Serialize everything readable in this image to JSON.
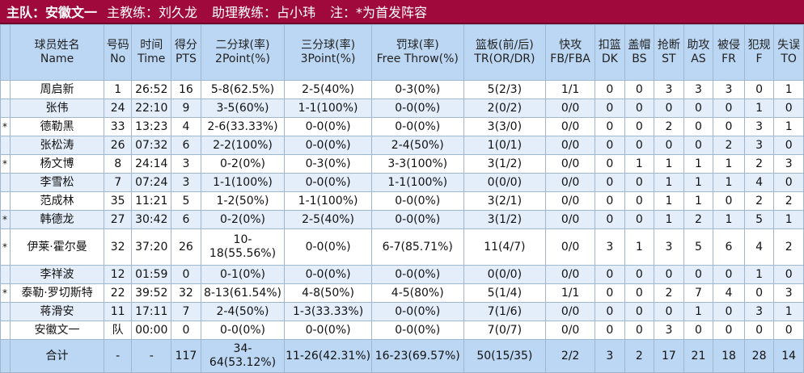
{
  "banner": {
    "team": "主队：安徽文一",
    "coach": "主教练：刘久龙",
    "assistant": "助理教练：占小玮",
    "note": "注：*为首发阵容"
  },
  "columns": [
    {
      "cn": "",
      "en": ""
    },
    {
      "cn": "球员姓名",
      "en": "Name"
    },
    {
      "cn": "号码",
      "en": "No"
    },
    {
      "cn": "时间",
      "en": "Time"
    },
    {
      "cn": "得分",
      "en": "PTS"
    },
    {
      "cn": "二分球(率)",
      "en": "2Point(%)"
    },
    {
      "cn": "三分球(率)",
      "en": "3Point(%)"
    },
    {
      "cn": "罚球(率)",
      "en": "Free Throw(%)"
    },
    {
      "cn": "篮板(前/后)",
      "en": "TR(OR/DR)"
    },
    {
      "cn": "快攻",
      "en": "FB/FBA"
    },
    {
      "cn": "扣篮",
      "en": "DK"
    },
    {
      "cn": "盖帽",
      "en": "BS"
    },
    {
      "cn": "抢断",
      "en": "ST"
    },
    {
      "cn": "助攻",
      "en": "AS"
    },
    {
      "cn": "被侵",
      "en": "FR"
    },
    {
      "cn": "犯规",
      "en": "F"
    },
    {
      "cn": "失误",
      "en": "TO"
    }
  ],
  "rows": [
    [
      "",
      "周启新",
      "1",
      "26:52",
      "16",
      "5-8(62.5%)",
      "2-5(40%)",
      "0-3(0%)",
      "5(2/3)",
      "1/1",
      "0",
      "0",
      "3",
      "3",
      "3",
      "0",
      "1"
    ],
    [
      "",
      "张伟",
      "24",
      "22:10",
      "9",
      "3-5(60%)",
      "1-1(100%)",
      "0-0(0%)",
      "2(0/2)",
      "0/0",
      "0",
      "0",
      "0",
      "0",
      "0",
      "1",
      "0"
    ],
    [
      "*",
      "德勒黑",
      "33",
      "13:23",
      "4",
      "2-6(33.33%)",
      "0-0(0%)",
      "0-0(0%)",
      "3(3/0)",
      "0/0",
      "0",
      "0",
      "2",
      "0",
      "0",
      "3",
      "1"
    ],
    [
      "",
      "张松涛",
      "26",
      "07:32",
      "6",
      "2-2(100%)",
      "0-0(0%)",
      "2-4(50%)",
      "1(0/1)",
      "0/0",
      "0",
      "0",
      "0",
      "0",
      "2",
      "3",
      "0"
    ],
    [
      "*",
      "杨文博",
      "8",
      "24:14",
      "3",
      "0-2(0%)",
      "0-3(0%)",
      "3-3(100%)",
      "3(1/2)",
      "0/0",
      "0",
      "1",
      "1",
      "1",
      "1",
      "2",
      "3"
    ],
    [
      "",
      "李雪松",
      "7",
      "07:24",
      "3",
      "1-1(100%)",
      "0-0(0%)",
      "1-1(100%)",
      "0(0/0)",
      "0/0",
      "0",
      "0",
      "1",
      "1",
      "1",
      "4",
      "0"
    ],
    [
      "",
      "范成林",
      "35",
      "11:21",
      "5",
      "1-2(50%)",
      "1-1(100%)",
      "0-0(0%)",
      "3(2/1)",
      "0/0",
      "0",
      "0",
      "1",
      "1",
      "0",
      "2",
      "2"
    ],
    [
      "*",
      "韩德龙",
      "27",
      "30:42",
      "6",
      "0-2(0%)",
      "2-5(40%)",
      "0-0(0%)",
      "3(1/2)",
      "0/0",
      "0",
      "0",
      "1",
      "2",
      "1",
      "5",
      "1"
    ],
    [
      "*",
      "伊莱·霍尔曼",
      "32",
      "37:20",
      "26",
      "10-18(55.56%)",
      "0-0(0%)",
      "6-7(85.71%)",
      "11(4/7)",
      "0/0",
      "3",
      "1",
      "3",
      "5",
      "6",
      "4",
      "2"
    ],
    [
      "",
      "李祥波",
      "12",
      "01:59",
      "0",
      "0-1(0%)",
      "0-0(0%)",
      "0-0(0%)",
      "0(0/0)",
      "0/0",
      "0",
      "0",
      "0",
      "0",
      "0",
      "1",
      "0"
    ],
    [
      "*",
      "泰勒·罗切斯特",
      "22",
      "39:52",
      "32",
      "8-13(61.54%)",
      "4-8(50%)",
      "4-5(80%)",
      "5(1/4)",
      "1/1",
      "0",
      "0",
      "2",
      "7",
      "4",
      "0",
      "3"
    ],
    [
      "",
      "蒋滑安",
      "11",
      "17:11",
      "7",
      "2-4(50%)",
      "1-3(33.33%)",
      "0-0(0%)",
      "7(1/6)",
      "0/0",
      "0",
      "0",
      "0",
      "1",
      "0",
      "3",
      "1"
    ],
    [
      "",
      "安徽文一",
      "队",
      "00:00",
      "0",
      "0-0(0%)",
      "0-0(0%)",
      "0-0(0%)",
      "7(0/7)",
      "0/0",
      "0",
      "0",
      "3",
      "0",
      "0",
      "0",
      "0"
    ]
  ],
  "total": [
    "",
    "合计",
    "-",
    "-",
    "117",
    "34-64(53.12%)",
    "11-26(42.31%)",
    "16-23(69.57%)",
    "50(15/35)",
    "2/2",
    "3",
    "2",
    "17",
    "21",
    "18",
    "28",
    "14"
  ]
}
